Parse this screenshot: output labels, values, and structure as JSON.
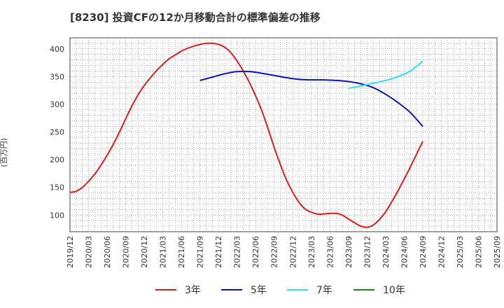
{
  "chart_data": {
    "type": "line",
    "title": "[8230]  投資CFの12か月移動合計の標準偏差の推移",
    "ylabel": "(百万円)",
    "xlabel": "",
    "x_ticks": [
      "2019/12",
      "2020/03",
      "2020/06",
      "2020/09",
      "2020/12",
      "2021/03",
      "2021/06",
      "2021/09",
      "2021/12",
      "2022/03",
      "2022/06",
      "2022/09",
      "2022/12",
      "2023/03",
      "2023/06",
      "2023/09",
      "2023/12",
      "2024/03",
      "2024/06",
      "2024/09",
      "2024/12",
      "2025/03",
      "2025/06",
      "2025/09"
    ],
    "y_ticks": [
      100,
      150,
      200,
      250,
      300,
      350,
      400
    ],
    "ylim": [
      70,
      420
    ],
    "grid": true,
    "legend_position": "bottom",
    "series": [
      {
        "name": "3年",
        "color": "#e31a1c",
        "points": [
          [
            "2019/12",
            141
          ],
          [
            "2020/01",
            143
          ],
          [
            "2020/02",
            150
          ],
          [
            "2020/03",
            161
          ],
          [
            "2020/04",
            174
          ],
          [
            "2020/05",
            190
          ],
          [
            "2020/06",
            208
          ],
          [
            "2020/07",
            228
          ],
          [
            "2020/08",
            250
          ],
          [
            "2020/09",
            274
          ],
          [
            "2020/10",
            297
          ],
          [
            "2020/11",
            317
          ],
          [
            "2020/12",
            334
          ],
          [
            "2021/01",
            348
          ],
          [
            "2021/02",
            361
          ],
          [
            "2021/03",
            372
          ],
          [
            "2021/04",
            382
          ],
          [
            "2021/05",
            389
          ],
          [
            "2021/06",
            396
          ],
          [
            "2021/07",
            401
          ],
          [
            "2021/08",
            405
          ],
          [
            "2021/09",
            408
          ],
          [
            "2021/10",
            410
          ],
          [
            "2021/11",
            410
          ],
          [
            "2021/12",
            408
          ],
          [
            "2022/01",
            403
          ],
          [
            "2022/02",
            393
          ],
          [
            "2022/03",
            378
          ],
          [
            "2022/04",
            360
          ],
          [
            "2022/05",
            339
          ],
          [
            "2022/06",
            315
          ],
          [
            "2022/07",
            288
          ],
          [
            "2022/08",
            256
          ],
          [
            "2022/09",
            222
          ],
          [
            "2022/10",
            191
          ],
          [
            "2022/11",
            163
          ],
          [
            "2022/12",
            141
          ],
          [
            "2023/01",
            123
          ],
          [
            "2023/02",
            111
          ],
          [
            "2023/03",
            105
          ],
          [
            "2023/04",
            102
          ],
          [
            "2023/05",
            102
          ],
          [
            "2023/06",
            103
          ],
          [
            "2023/07",
            103
          ],
          [
            "2023/08",
            100
          ],
          [
            "2023/09",
            93
          ],
          [
            "2023/10",
            86
          ],
          [
            "2023/11",
            80
          ],
          [
            "2023/12",
            78
          ],
          [
            "2024/01",
            82
          ],
          [
            "2024/02",
            92
          ],
          [
            "2024/03",
            106
          ],
          [
            "2024/04",
            124
          ],
          [
            "2024/05",
            144
          ],
          [
            "2024/06",
            165
          ],
          [
            "2024/07",
            187
          ],
          [
            "2024/08",
            210
          ],
          [
            "2024/09",
            233
          ]
        ]
      },
      {
        "name": "5年",
        "color": "#0a14b4",
        "points": [
          [
            "2021/09",
            343
          ],
          [
            "2021/11",
            349
          ],
          [
            "2022/01",
            355
          ],
          [
            "2022/03",
            359
          ],
          [
            "2022/05",
            359
          ],
          [
            "2022/07",
            356
          ],
          [
            "2022/09",
            352
          ],
          [
            "2022/11",
            348
          ],
          [
            "2023/01",
            345
          ],
          [
            "2023/03",
            344
          ],
          [
            "2023/05",
            344
          ],
          [
            "2023/07",
            343
          ],
          [
            "2023/09",
            341
          ],
          [
            "2023/11",
            337
          ],
          [
            "2024/01",
            330
          ],
          [
            "2024/03",
            318
          ],
          [
            "2024/05",
            303
          ],
          [
            "2024/07",
            285
          ],
          [
            "2024/09",
            260
          ]
        ]
      },
      {
        "name": "7年",
        "color": "#33e0f0",
        "points": [
          [
            "2023/09",
            329
          ],
          [
            "2023/11",
            333
          ],
          [
            "2024/01",
            338
          ],
          [
            "2024/03",
            343
          ],
          [
            "2024/05",
            350
          ],
          [
            "2024/07",
            360
          ],
          [
            "2024/09",
            378
          ]
        ]
      },
      {
        "name": "10年",
        "color": "#1a8a1a",
        "points": []
      }
    ]
  }
}
